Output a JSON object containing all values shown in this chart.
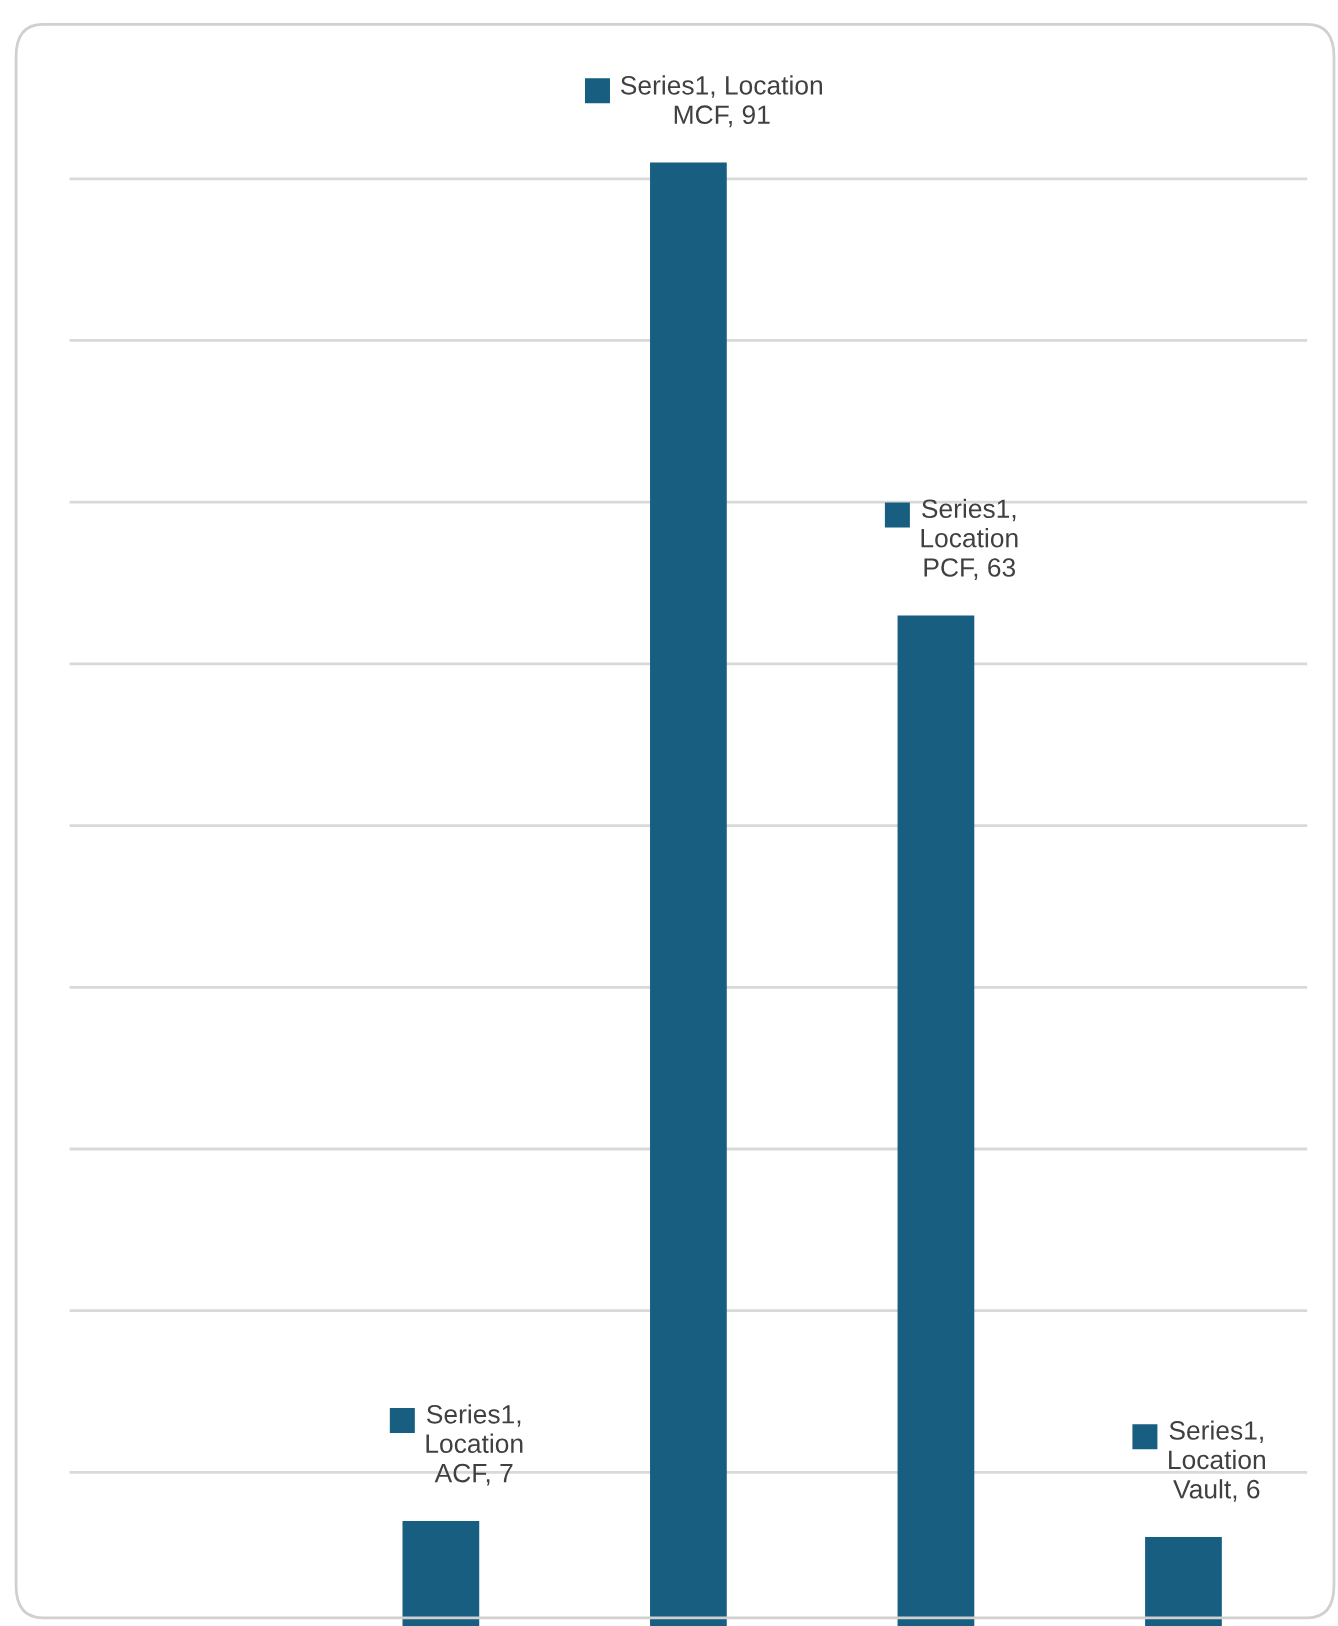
{
  "chart_data": {
    "type": "bar",
    "categories": [
      null,
      null,
      null,
      null
    ],
    "values": [
      7,
      91,
      63,
      6
    ],
    "color": "#175e80",
    "value_labels": [
      "Series1,\nLocation\nACF, 7",
      "Series1, Location\nMCF, 91",
      "Series1,\nLocation\nPCF, 63",
      "Series1,\nLocation\nVault, 6"
    ],
    "ylim": [
      0,
      100
    ],
    "yticks": [
      {
        "value": 10,
        "label": null
      },
      {
        "value": 20,
        "label": null
      },
      {
        "value": 30,
        "label": null
      },
      {
        "value": 40,
        "label": null
      },
      {
        "value": 50,
        "label": null
      },
      {
        "value": 60,
        "label": null
      },
      {
        "value": 70,
        "label": null
      },
      {
        "value": 80,
        "label": null
      },
      {
        "value": 90,
        "label": null
      }
    ],
    "grid": "y",
    "legend": false
  }
}
